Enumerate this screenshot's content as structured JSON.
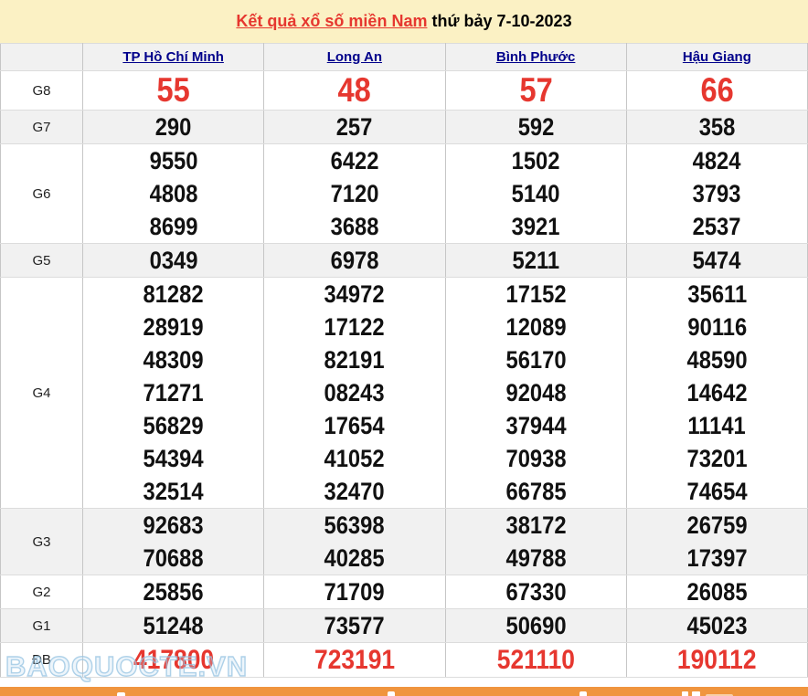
{
  "title": {
    "link_text": "Kết quả xổ số miền Nam",
    "suffix_text": " thứ bảy 7-10-2023"
  },
  "table": {
    "columns": [
      "TP Hồ Chí Minh",
      "Long An",
      "Bình Phước",
      "Hậu Giang"
    ],
    "rows": [
      {
        "label": "G8",
        "style": "r-large",
        "shaded": false,
        "values": [
          [
            "55"
          ],
          [
            "48"
          ],
          [
            "57"
          ],
          [
            "66"
          ]
        ]
      },
      {
        "label": "G7",
        "style": "",
        "shaded": true,
        "values": [
          [
            "290"
          ],
          [
            "257"
          ],
          [
            "592"
          ],
          [
            "358"
          ]
        ]
      },
      {
        "label": "G6",
        "style": "",
        "shaded": false,
        "values": [
          [
            "9550",
            "4808",
            "8699"
          ],
          [
            "6422",
            "7120",
            "3688"
          ],
          [
            "1502",
            "5140",
            "3921"
          ],
          [
            "4824",
            "3793",
            "2537"
          ]
        ]
      },
      {
        "label": "G5",
        "style": "",
        "shaded": true,
        "values": [
          [
            "0349"
          ],
          [
            "6978"
          ],
          [
            "5211"
          ],
          [
            "5474"
          ]
        ]
      },
      {
        "label": "G4",
        "style": "",
        "shaded": false,
        "values": [
          [
            "81282",
            "28919",
            "48309",
            "71271",
            "56829",
            "54394",
            "32514"
          ],
          [
            "34972",
            "17122",
            "82191",
            "08243",
            "17654",
            "41052",
            "32470"
          ],
          [
            "17152",
            "12089",
            "56170",
            "92048",
            "37944",
            "70938",
            "66785"
          ],
          [
            "35611",
            "90116",
            "48590",
            "14642",
            "11141",
            "73201",
            "74654"
          ]
        ]
      },
      {
        "label": "G3",
        "style": "",
        "shaded": true,
        "values": [
          [
            "92683",
            "70688"
          ],
          [
            "56398",
            "40285"
          ],
          [
            "38172",
            "49788"
          ],
          [
            "26759",
            "17397"
          ]
        ]
      },
      {
        "label": "G2",
        "style": "",
        "shaded": false,
        "values": [
          [
            "25856"
          ],
          [
            "71709"
          ],
          [
            "67330"
          ],
          [
            "26085"
          ]
        ]
      },
      {
        "label": "G1",
        "style": "",
        "shaded": true,
        "values": [
          [
            "51248"
          ],
          [
            "73577"
          ],
          [
            "50690"
          ],
          [
            "45023"
          ]
        ]
      },
      {
        "label": "ĐB",
        "style": "r-med",
        "shaded": false,
        "values": [
          [
            "417800"
          ],
          [
            "723191"
          ],
          [
            "521110"
          ],
          [
            "190112"
          ]
        ]
      }
    ]
  },
  "watermark": "BAOQUOCTE.VN",
  "colors": {
    "title_background": "#fbf1c4",
    "accent_red": "#e6372f",
    "header_link_navy": "#00008b",
    "shaded_row": "#f1f1f1",
    "bottom_bar_orange": "#f0953e"
  }
}
